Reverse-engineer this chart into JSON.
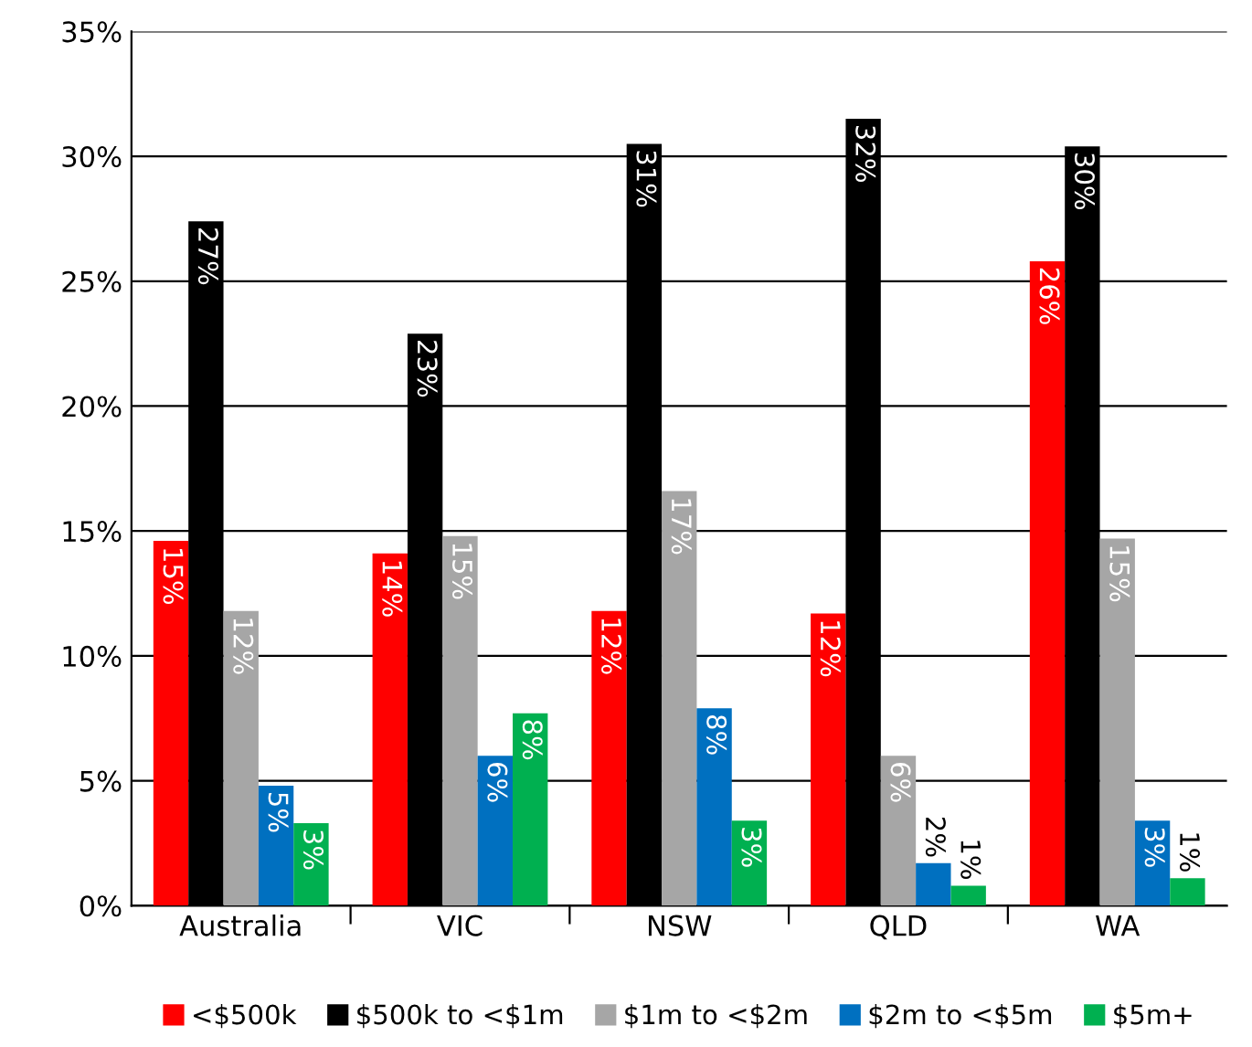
{
  "chart_data": {
    "type": "bar",
    "categories": [
      "Australia",
      "VIC",
      "NSW",
      "QLD",
      "WA"
    ],
    "series": [
      {
        "name": "<$500k",
        "color": "#ff0000",
        "values": [
          14.6,
          14.1,
          11.8,
          11.7,
          25.8
        ],
        "value_labels": [
          "15%",
          "14%",
          "12%",
          "12%",
          "26%"
        ]
      },
      {
        "name": "$500k to <$1m",
        "color": "#000000",
        "values": [
          27.4,
          22.9,
          30.5,
          31.5,
          30.4
        ],
        "value_labels": [
          "27%",
          "23%",
          "31%",
          "32%",
          "30%"
        ]
      },
      {
        "name": "$1m to <$2m",
        "color": "#a6a6a6",
        "values": [
          11.8,
          14.8,
          16.6,
          6.0,
          14.7
        ],
        "value_labels": [
          "12%",
          "15%",
          "17%",
          "6%",
          "15%"
        ]
      },
      {
        "name": "$2m to <$5m",
        "color": "#0070c0",
        "values": [
          4.8,
          6.0,
          7.9,
          1.7,
          3.4
        ],
        "value_labels": [
          "5%",
          "6%",
          "8%",
          "2%",
          "3%"
        ]
      },
      {
        "name": "$5m+",
        "color": "#00b050",
        "values": [
          3.3,
          7.7,
          3.4,
          0.8,
          1.1
        ],
        "value_labels": [
          "3%",
          "8%",
          "3%",
          "1%",
          "1%"
        ]
      }
    ],
    "ylim": [
      0,
      35
    ],
    "yticks": [
      {
        "value": 0,
        "label": "0%"
      },
      {
        "value": 5,
        "label": "5%"
      },
      {
        "value": 10,
        "label": "10%"
      },
      {
        "value": 15,
        "label": "15%"
      },
      {
        "value": 20,
        "label": "20%"
      },
      {
        "value": 25,
        "label": "25%"
      },
      {
        "value": 30,
        "label": "30%"
      },
      {
        "value": 35,
        "label": "35%"
      }
    ],
    "grid": "y",
    "legend": "bottom"
  }
}
